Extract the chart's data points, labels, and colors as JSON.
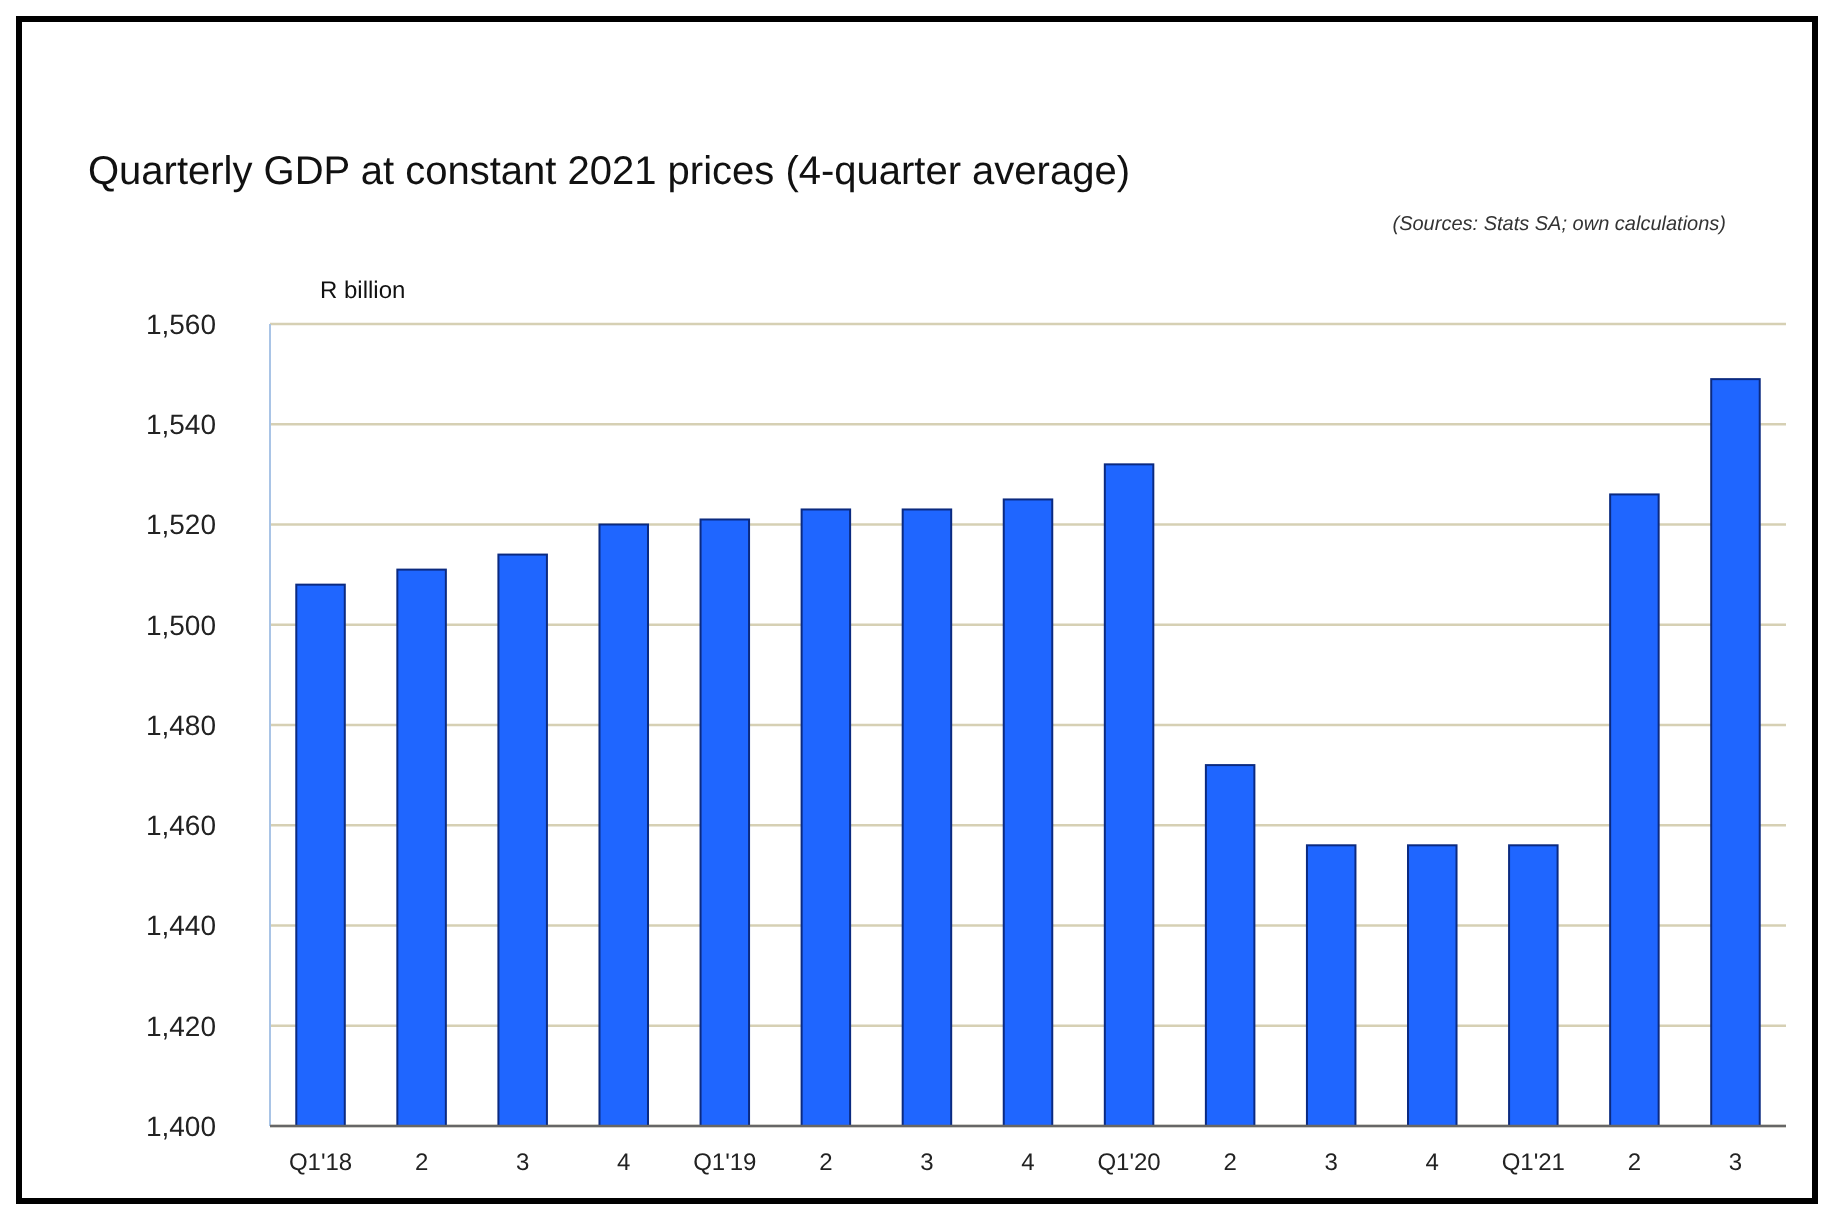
{
  "chart_data": {
    "type": "bar",
    "title": "Quarterly GDP at constant 2021 prices (4-quarter average)",
    "annotations": [
      "(Sources: Stats SA; own calculations)"
    ],
    "ylabel": "R billion",
    "categories": [
      "Q1'18",
      "2",
      "3",
      "4",
      "Q1'19",
      "2",
      "3",
      "4",
      "Q1'20",
      "2",
      "3",
      "4",
      "Q1'21",
      "2",
      "3"
    ],
    "values": [
      1508,
      1511,
      1514,
      1520,
      1521,
      1523,
      1523,
      1525,
      1532,
      1472,
      1456,
      1456,
      1456,
      1526,
      1549
    ],
    "color": "#1f66ff",
    "ylim": [
      1400,
      1560
    ],
    "yticks": [
      {
        "value": 1400,
        "label": "1,400"
      },
      {
        "value": 1420,
        "label": "1,420"
      },
      {
        "value": 1440,
        "label": "1,440"
      },
      {
        "value": 1460,
        "label": "1,460"
      },
      {
        "value": 1480,
        "label": "1,480"
      },
      {
        "value": 1500,
        "label": "1,500"
      },
      {
        "value": 1520,
        "label": "1,520"
      },
      {
        "value": 1540,
        "label": "1,540"
      },
      {
        "value": 1560,
        "label": "1,560"
      }
    ],
    "grid": "y"
  }
}
